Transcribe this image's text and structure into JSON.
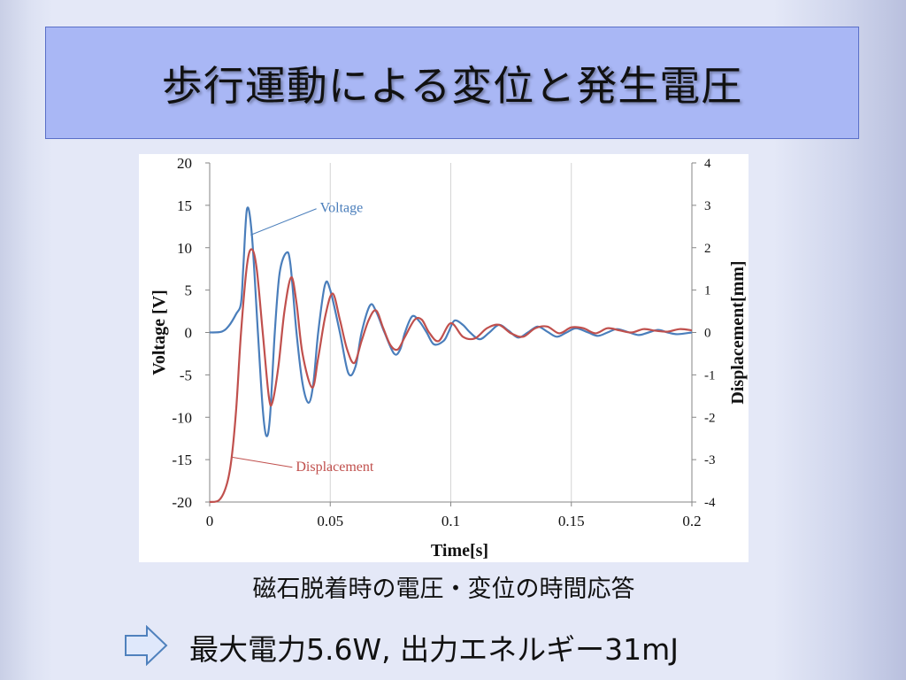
{
  "title": "歩行運動による変位と発生電圧",
  "caption": "磁石脱着時の電圧・変位の時間応答",
  "result_text": "最大電力5.6W, 出力エネルギー31mJ",
  "icons": {
    "arrow": "right-arrow-icon"
  },
  "colors": {
    "voltage": "#4a7ebb",
    "displacement": "#c0504d",
    "title_bg": "#a9b7f5"
  },
  "chart_data": {
    "type": "line",
    "xlabel": "Time[s]",
    "ylabel": "Voltage [V]",
    "y2label": "Displacement[mm]",
    "xlim": [
      0,
      0.2
    ],
    "ylim": [
      -20,
      20
    ],
    "y2lim": [
      -4,
      4
    ],
    "x_ticks": [
      "0",
      "0.05",
      "0.1",
      "0.15",
      "0.2"
    ],
    "y_ticks": [
      "20",
      "15",
      "10",
      "5",
      "0",
      "-5",
      "-10",
      "-15",
      "-20"
    ],
    "y2_ticks": [
      "4",
      "3",
      "2",
      "1",
      "0",
      "-1",
      "-2",
      "-3",
      "-4"
    ],
    "grid": "vertical",
    "series": [
      {
        "name": "Voltage",
        "axis": "left",
        "points": [
          [
            0,
            0
          ],
          [
            0.005,
            0.1
          ],
          [
            0.008,
            0.8
          ],
          [
            0.011,
            2.2
          ],
          [
            0.013,
            3.5
          ],
          [
            0.014,
            8
          ],
          [
            0.0155,
            14.6
          ],
          [
            0.0175,
            11.5
          ],
          [
            0.02,
            0
          ],
          [
            0.022,
            -9
          ],
          [
            0.0235,
            -12.2
          ],
          [
            0.025,
            -10
          ],
          [
            0.027,
            0
          ],
          [
            0.029,
            7
          ],
          [
            0.0318,
            9.4
          ],
          [
            0.0335,
            8
          ],
          [
            0.036,
            0
          ],
          [
            0.0385,
            -6
          ],
          [
            0.041,
            -8.3
          ],
          [
            0.043,
            -6
          ],
          [
            0.045,
            0
          ],
          [
            0.0478,
            5.6
          ],
          [
            0.05,
            5
          ],
          [
            0.054,
            0
          ],
          [
            0.0575,
            -4.8
          ],
          [
            0.0605,
            -4
          ],
          [
            0.063,
            0
          ],
          [
            0.0665,
            3.2
          ],
          [
            0.069,
            2.5
          ],
          [
            0.0725,
            0
          ],
          [
            0.0765,
            -2.5
          ],
          [
            0.079,
            -2
          ],
          [
            0.081,
            0
          ],
          [
            0.084,
            1.9
          ],
          [
            0.087,
            1.3
          ],
          [
            0.09,
            0
          ],
          [
            0.093,
            -1.4
          ],
          [
            0.097,
            -1
          ],
          [
            0.099,
            0
          ],
          [
            0.1015,
            1.4
          ],
          [
            0.105,
            0.9
          ],
          [
            0.108,
            0
          ],
          [
            0.112,
            -0.8
          ],
          [
            0.116,
            0
          ],
          [
            0.12,
            0.9
          ],
          [
            0.124,
            0.2
          ],
          [
            0.128,
            -0.6
          ],
          [
            0.132,
            0
          ],
          [
            0.136,
            0.7
          ],
          [
            0.14,
            0.1
          ],
          [
            0.144,
            -0.5
          ],
          [
            0.148,
            0
          ],
          [
            0.152,
            0.5
          ],
          [
            0.157,
            0
          ],
          [
            0.161,
            -0.4
          ],
          [
            0.165,
            0
          ],
          [
            0.169,
            0.4
          ],
          [
            0.174,
            0
          ],
          [
            0.178,
            -0.3
          ],
          [
            0.182,
            0
          ],
          [
            0.186,
            0.3
          ],
          [
            0.19,
            0
          ],
          [
            0.194,
            -0.2
          ],
          [
            0.2,
            0
          ]
        ]
      },
      {
        "name": "Displacement",
        "axis": "right",
        "points": [
          [
            0,
            -4
          ],
          [
            0.004,
            -3.95
          ],
          [
            0.007,
            -3.6
          ],
          [
            0.009,
            -3
          ],
          [
            0.011,
            -1.8
          ],
          [
            0.013,
            0
          ],
          [
            0.0155,
            1.6
          ],
          [
            0.0175,
            1.96
          ],
          [
            0.0195,
            1.5
          ],
          [
            0.022,
            0
          ],
          [
            0.0245,
            -1.5
          ],
          [
            0.026,
            -1.65
          ],
          [
            0.0285,
            -0.8
          ],
          [
            0.031,
            0.5
          ],
          [
            0.0338,
            1.3
          ],
          [
            0.036,
            0.7
          ],
          [
            0.0385,
            -0.5
          ],
          [
            0.0425,
            -1.3
          ],
          [
            0.045,
            -0.6
          ],
          [
            0.048,
            0.4
          ],
          [
            0.051,
            0.92
          ],
          [
            0.054,
            0.3
          ],
          [
            0.057,
            -0.4
          ],
          [
            0.06,
            -0.72
          ],
          [
            0.063,
            -0.2
          ],
          [
            0.066,
            0.3
          ],
          [
            0.069,
            0.52
          ],
          [
            0.072,
            0.1
          ],
          [
            0.075,
            -0.3
          ],
          [
            0.078,
            -0.4
          ],
          [
            0.081,
            -0.1
          ],
          [
            0.085,
            0.3
          ],
          [
            0.088,
            0.3
          ],
          [
            0.091,
            0
          ],
          [
            0.095,
            -0.2
          ],
          [
            0.1,
            0.22
          ],
          [
            0.105,
            -0.1
          ],
          [
            0.11,
            -0.14
          ],
          [
            0.115,
            0.1
          ],
          [
            0.12,
            0.18
          ],
          [
            0.125,
            -0.02
          ],
          [
            0.13,
            -0.1
          ],
          [
            0.135,
            0.1
          ],
          [
            0.14,
            0.14
          ],
          [
            0.145,
            -0.02
          ],
          [
            0.15,
            0.12
          ],
          [
            0.155,
            0.1
          ],
          [
            0.16,
            -0.02
          ],
          [
            0.165,
            0.1
          ],
          [
            0.17,
            0.05
          ],
          [
            0.175,
            0.0
          ],
          [
            0.18,
            0.08
          ],
          [
            0.185,
            0.04
          ],
          [
            0.19,
            0.02
          ],
          [
            0.195,
            0.08
          ],
          [
            0.2,
            0.05
          ]
        ]
      }
    ],
    "annotations": [
      {
        "text": "Voltage",
        "series": "Voltage",
        "point": [
          0.017,
          11.5
        ],
        "label_at": [
          0.045,
          14.7
        ]
      },
      {
        "text": "Displacement",
        "series": "Displacement",
        "point": [
          0.009,
          -14.7
        ],
        "label_at": [
          0.035,
          -15.8
        ]
      }
    ]
  }
}
